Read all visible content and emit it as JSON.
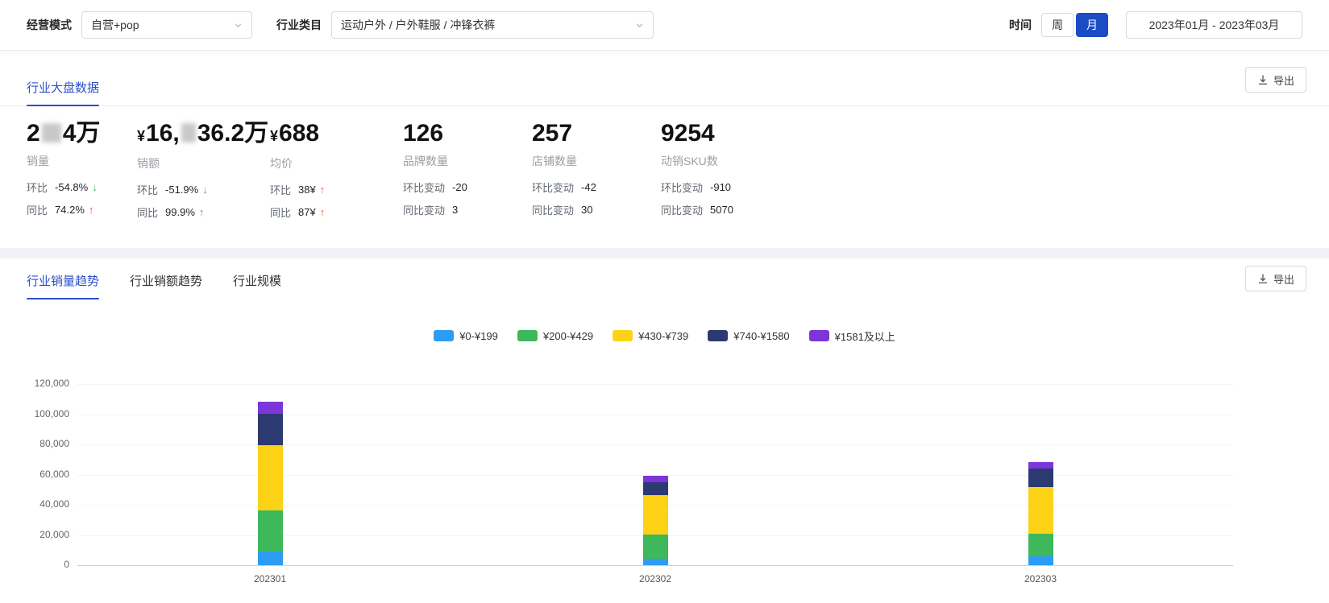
{
  "filters": {
    "business_mode": {
      "label": "经营模式",
      "value": "自营+pop"
    },
    "category": {
      "label": "行业类目",
      "value": "运动户外 / 户外鞋服 / 冲锋衣裤"
    },
    "time": {
      "label": "时间",
      "week_label": "周",
      "month_label": "月",
      "selected": "月",
      "range": "2023年01月 - 2023年03月"
    }
  },
  "overview": {
    "title": "行业大盘数据",
    "export_label": "导出",
    "cards": [
      {
        "value_a": "2",
        "redacted": true,
        "value_b": "4万",
        "label": "销量",
        "rows": [
          {
            "k": "环比",
            "v": "-54.8%",
            "trend": "down"
          },
          {
            "k": "同比",
            "v": "74.2%",
            "trend": "up"
          }
        ]
      },
      {
        "currency": "¥",
        "value_a": "16,",
        "redacted": true,
        "value_b": "36.2万",
        "label": "销额",
        "rows": [
          {
            "k": "环比",
            "v": "-51.9%",
            "trend": "down"
          },
          {
            "k": "同比",
            "v": "99.9%",
            "trend": "up"
          }
        ]
      },
      {
        "currency": "¥",
        "value_a": "688",
        "label": "均价",
        "rows": [
          {
            "k": "环比",
            "v": "38¥",
            "trend": "up"
          },
          {
            "k": "同比",
            "v": "87¥",
            "trend": "up"
          }
        ]
      },
      {
        "value_a": "126",
        "label": "品牌数量",
        "rows": [
          {
            "k": "环比变动",
            "v": "-20"
          },
          {
            "k": "同比变动",
            "v": "3"
          }
        ]
      },
      {
        "value_a": "257",
        "label": "店铺数量",
        "rows": [
          {
            "k": "环比变动",
            "v": "-42"
          },
          {
            "k": "同比变动",
            "v": "30"
          }
        ]
      },
      {
        "value_a": "9254",
        "label": "动销SKU数",
        "rows": [
          {
            "k": "环比变动",
            "v": "-910"
          },
          {
            "k": "同比变动",
            "v": "5070"
          }
        ]
      }
    ]
  },
  "trend": {
    "tabs": [
      {
        "label": "行业销量趋势",
        "active": true
      },
      {
        "label": "行业销额趋势",
        "active": false
      },
      {
        "label": "行业规模",
        "active": false
      }
    ],
    "export_label": "导出"
  },
  "chart_data": {
    "type": "bar",
    "stacked": true,
    "title": "",
    "xlabel": "",
    "ylabel": "",
    "categories": [
      "202301",
      "202302",
      "202303"
    ],
    "series": [
      {
        "name": "¥0-¥199",
        "color": "#2D9CF4",
        "values": [
          9000,
          4000,
          6000
        ]
      },
      {
        "name": "¥200-¥429",
        "color": "#3DB85B",
        "values": [
          27000,
          16000,
          15000
        ]
      },
      {
        "name": "¥430-¥739",
        "color": "#FCD216",
        "values": [
          43000,
          26000,
          31000
        ]
      },
      {
        "name": "¥740-¥1580",
        "color": "#2C3A72",
        "values": [
          21000,
          8500,
          12500
        ]
      },
      {
        "name": "¥1581及以上",
        "color": "#7C35D8",
        "values": [
          8000,
          4000,
          4000
        ]
      }
    ],
    "ylim": [
      0,
      120000
    ],
    "yticks": [
      0,
      20000,
      40000,
      60000,
      80000,
      100000,
      120000
    ],
    "legend_position": "top-center",
    "grid": true
  },
  "colors": {
    "accent_blue": "#2B50C8",
    "selected_toggle_blue": "#1C4CC4",
    "up_red": "#F25642",
    "down_green": "#3CB95F"
  }
}
